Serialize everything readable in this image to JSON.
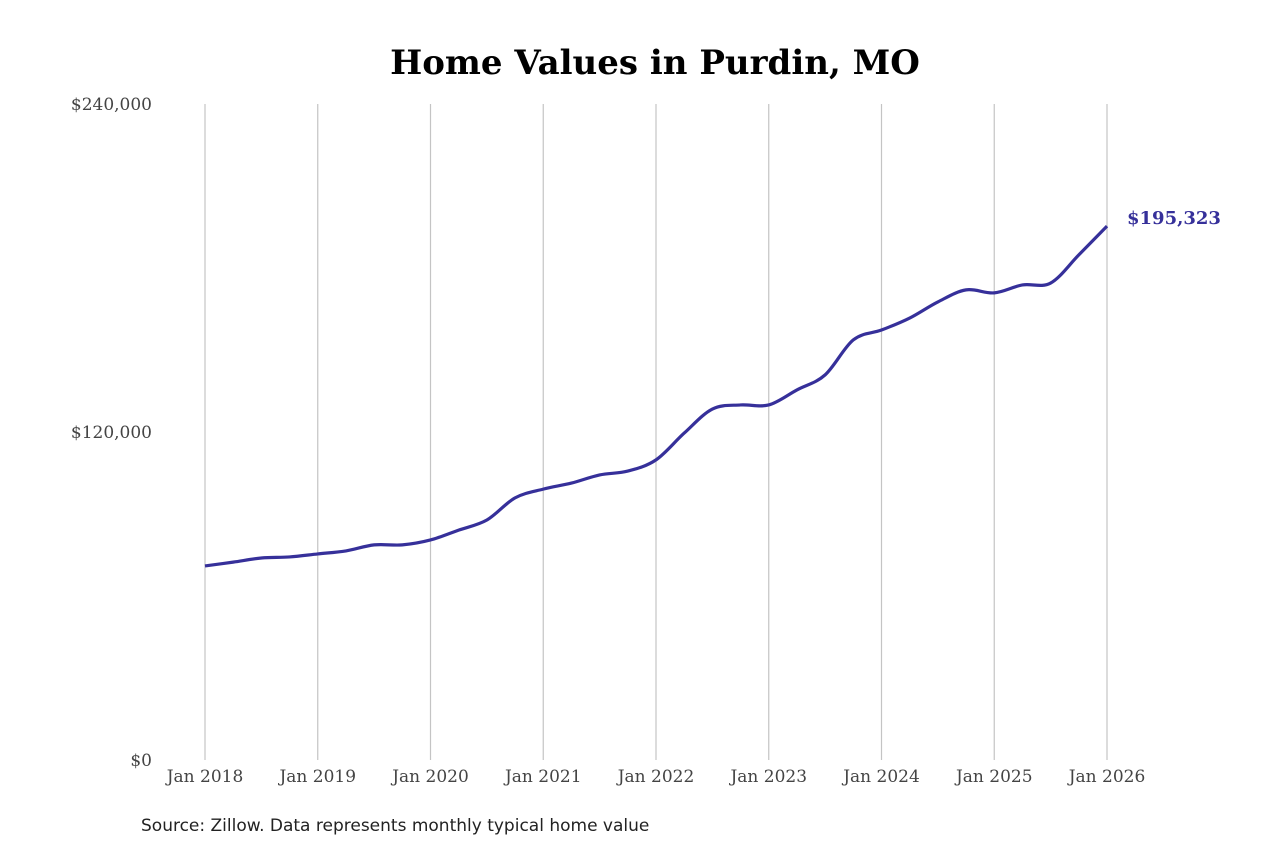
{
  "chart_data": {
    "type": "line",
    "title": "Home Values in Purdin, MO",
    "xlabel": "",
    "ylabel": "",
    "ylim": [
      0,
      240000
    ],
    "y_ticks": [
      "$0",
      "$120,000",
      "$240,000"
    ],
    "y_tick_values": [
      0,
      120000,
      240000
    ],
    "x_ticks": [
      "Jan 2018",
      "Jan 2019",
      "Jan 2020",
      "Jan 2021",
      "Jan 2022",
      "Jan 2023",
      "Jan 2024",
      "Jan 2025",
      "Jan 2026"
    ],
    "grid": "vertical lines at x ticks",
    "line_color": "#36309a",
    "end_label": "$195,323",
    "series": [
      {
        "x": [
          "2018-01",
          "2018-04",
          "2018-07",
          "2018-10",
          "2019-01",
          "2019-04",
          "2019-07",
          "2019-10",
          "2020-01",
          "2020-04",
          "2020-07",
          "2020-10",
          "2021-01",
          "2021-04",
          "2021-07",
          "2021-10",
          "2022-01",
          "2022-04",
          "2022-07",
          "2022-10",
          "2023-01",
          "2023-04",
          "2023-07",
          "2023-10",
          "2024-01",
          "2024-04",
          "2024-07",
          "2024-10",
          "2025-01",
          "2025-04",
          "2025-07",
          "2025-10",
          "2026-01"
        ],
        "values": [
          71000,
          72400,
          73900,
          74300,
          75400,
          76500,
          78700,
          78700,
          80500,
          84100,
          87800,
          95900,
          99100,
          101300,
          104300,
          105700,
          109800,
          119600,
          128400,
          129900,
          129900,
          135400,
          140900,
          153700,
          157300,
          161700,
          167600,
          172000,
          170900,
          173800,
          174500,
          184800,
          195323
        ]
      }
    ]
  },
  "source": "Source: Zillow. Data represents monthly typical home value"
}
